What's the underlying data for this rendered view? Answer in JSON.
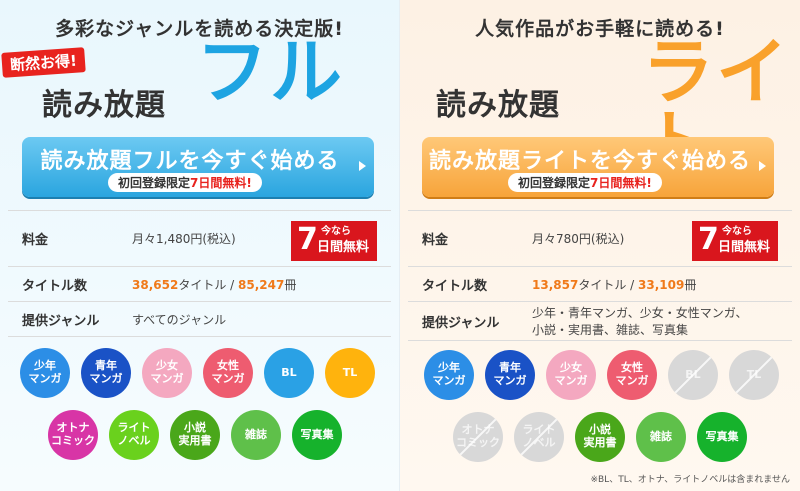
{
  "full": {
    "tagline": "多彩なジャンルを読める決定版!",
    "badge": "断然お得!",
    "product": "読み放題",
    "big": "フル",
    "cta_label": "読み放題フルを今すぐ始める",
    "cta_sub_a": "初回登録限定",
    "cta_sub_b": "7日間無料!",
    "price_label": "料金",
    "price_value": "月々1,480円(税込)",
    "free_n": "7",
    "free_t1": "今なら",
    "free_t2": "日間無料",
    "titles_label": "タイトル数",
    "titles_num": "38,652",
    "titles_unit": "タイトル / ",
    "books_num": "85,247",
    "books_unit": "冊",
    "genre_label": "提供ジャンル",
    "genre_value": "すべてのジャンル",
    "genres": [
      {
        "label": "少年\nマンガ",
        "color": "#2c8ee6"
      },
      {
        "label": "青年\nマンガ",
        "color": "#1a52c6"
      },
      {
        "label": "少女\nマンガ",
        "color": "#f4a8c0"
      },
      {
        "label": "女性\nマンガ",
        "color": "#ee5c70"
      },
      {
        "label": "BL",
        "color": "#2aa1e5"
      },
      {
        "label": "TL",
        "color": "#ffb30d"
      },
      {
        "label": "オトナ\nコミック",
        "color": "#d835a6"
      },
      {
        "label": "ライト\nノベル",
        "color": "#6ad11d"
      },
      {
        "label": "小説\n実用書",
        "color": "#4aa71a"
      },
      {
        "label": "雑誌",
        "color": "#5fc04a"
      },
      {
        "label": "写真集",
        "color": "#16b22c"
      }
    ]
  },
  "lite": {
    "tagline": "人気作品がお手軽に読める!",
    "product": "読み放題",
    "big": "ライト",
    "cta_label": "読み放題ライトを今すぐ始める",
    "cta_sub_a": "初回登録限定",
    "cta_sub_b": "7日間無料!",
    "price_label": "料金",
    "price_value": "月々780円(税込)",
    "free_n": "7",
    "free_t1": "今なら",
    "free_t2": "日間無料",
    "titles_label": "タイトル数",
    "titles_num": "13,857",
    "titles_unit": "タイトル / ",
    "books_num": "33,109",
    "books_unit": "冊",
    "genre_label": "提供ジャンル",
    "genre_value_1": "少年・青年マンガ、少女・女性マンガ、",
    "genre_value_2": "小説・実用書、雑誌、写真集",
    "genres": [
      {
        "label": "少年\nマンガ",
        "color": "#2c8ee6"
      },
      {
        "label": "青年\nマンガ",
        "color": "#1a52c6"
      },
      {
        "label": "少女\nマンガ",
        "color": "#f4a8c0"
      },
      {
        "label": "女性\nマンガ",
        "color": "#ee5c70"
      },
      {
        "label": "BL",
        "color": "#d8d8d8"
      },
      {
        "label": "TL",
        "color": "#d8d8d8"
      },
      {
        "label": "オトナ\nコミック",
        "color": "#d8d8d8"
      },
      {
        "label": "ライト\nノベル",
        "color": "#d8d8d8"
      },
      {
        "label": "小説\n実用書",
        "color": "#4aa71a"
      },
      {
        "label": "雑誌",
        "color": "#5fc04a"
      },
      {
        "label": "写真集",
        "color": "#16b22c"
      }
    ],
    "note": "※BL、TL、オトナ、ライトノベルは含まれません"
  }
}
